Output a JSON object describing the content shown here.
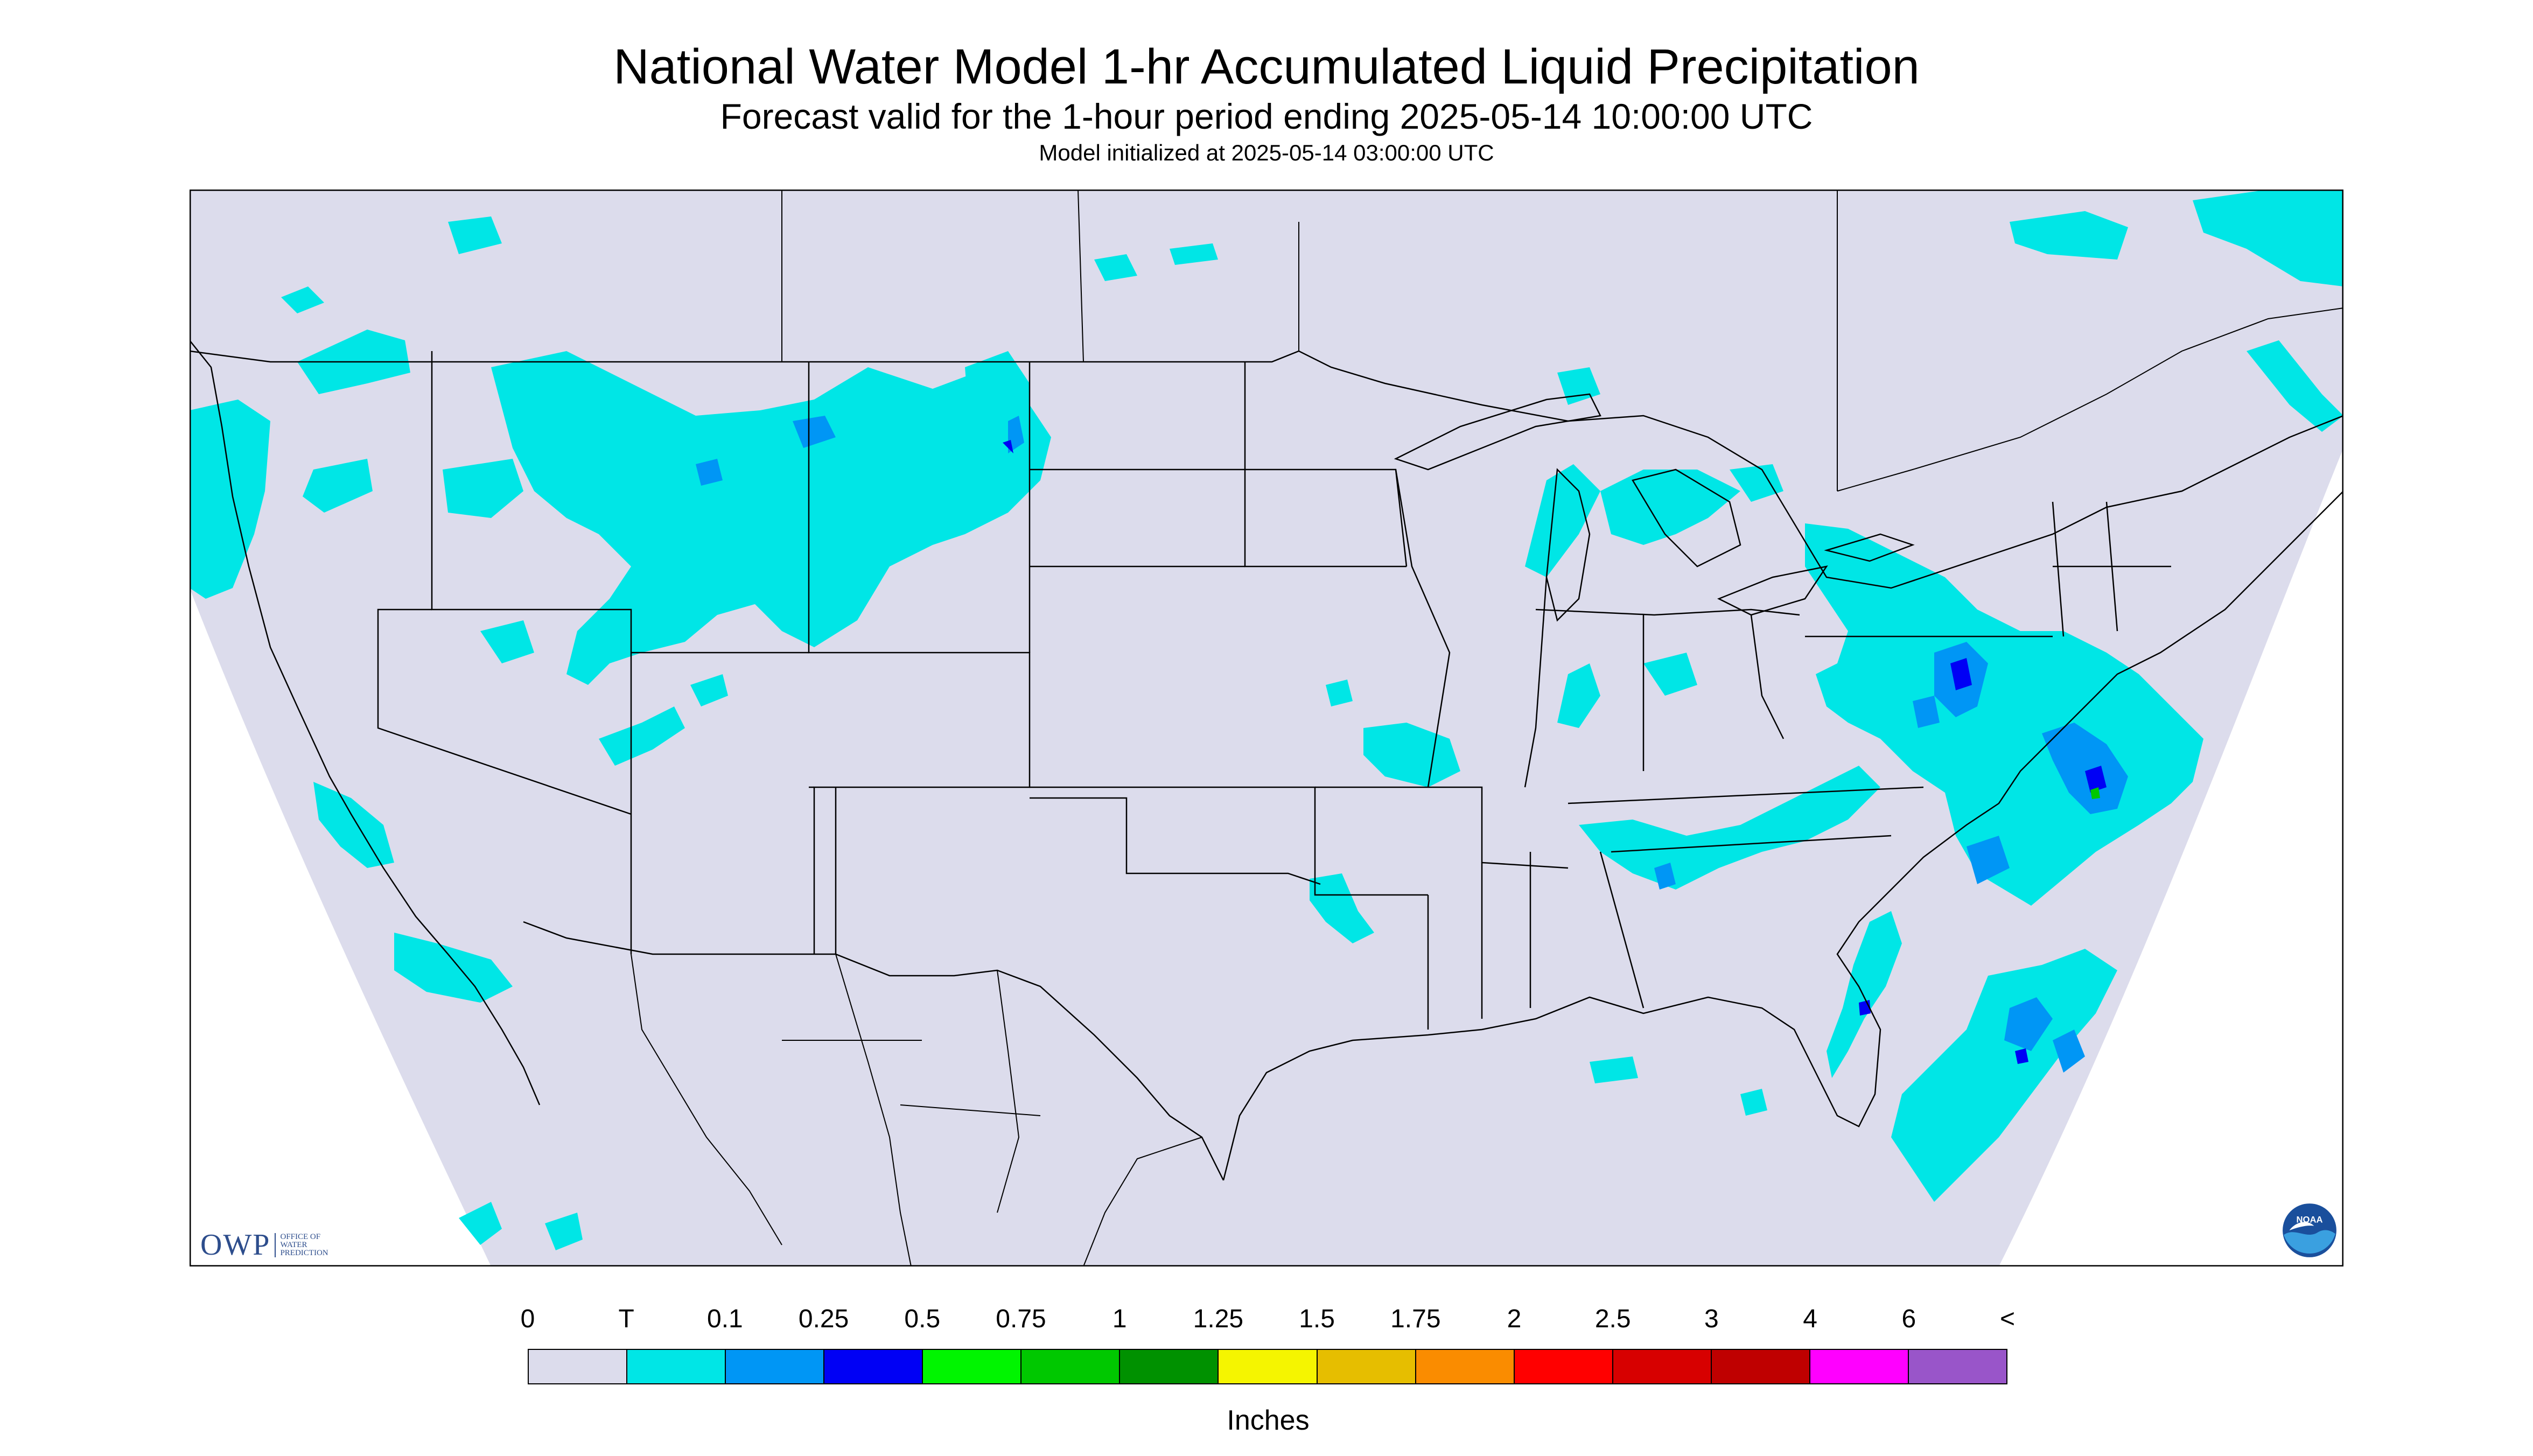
{
  "title": "National Water Model 1-hr Accumulated Liquid Precipitation",
  "subtitle": "Forecast valid for the 1-hour period ending 2025-05-14 10:00:00 UTC",
  "init_line": "Model initialized at 2025-05-14 03:00:00 UTC",
  "legend": {
    "labels": [
      "0",
      "T",
      "0.1",
      "0.25",
      "0.5",
      "0.75",
      "1",
      "1.25",
      "1.5",
      "1.75",
      "2",
      "2.5",
      "3",
      "4",
      "6",
      "<"
    ],
    "colors": [
      "#dcdcec",
      "#00e6e6",
      "#0096f5",
      "#0000f5",
      "#00f500",
      "#00c800",
      "#009100",
      "#f5f500",
      "#e6be00",
      "#fa8c00",
      "#ff0000",
      "#d70000",
      "#bf0000",
      "#ff00ff",
      "#9955c9"
    ],
    "units": "Inches"
  },
  "logos": {
    "owp_big": "OWP",
    "owp_small": [
      "OFFICE OF",
      "WATER",
      "PREDICTION"
    ],
    "noaa": "NOAA"
  },
  "map": {
    "background_color": "#dcdcec",
    "outside_color": "#ffffff",
    "precip_colors": {
      "trace": "#00e6e6",
      "light": "#0096f5",
      "moderate": "#0000f5",
      "heavy": "#00c800"
    }
  }
}
